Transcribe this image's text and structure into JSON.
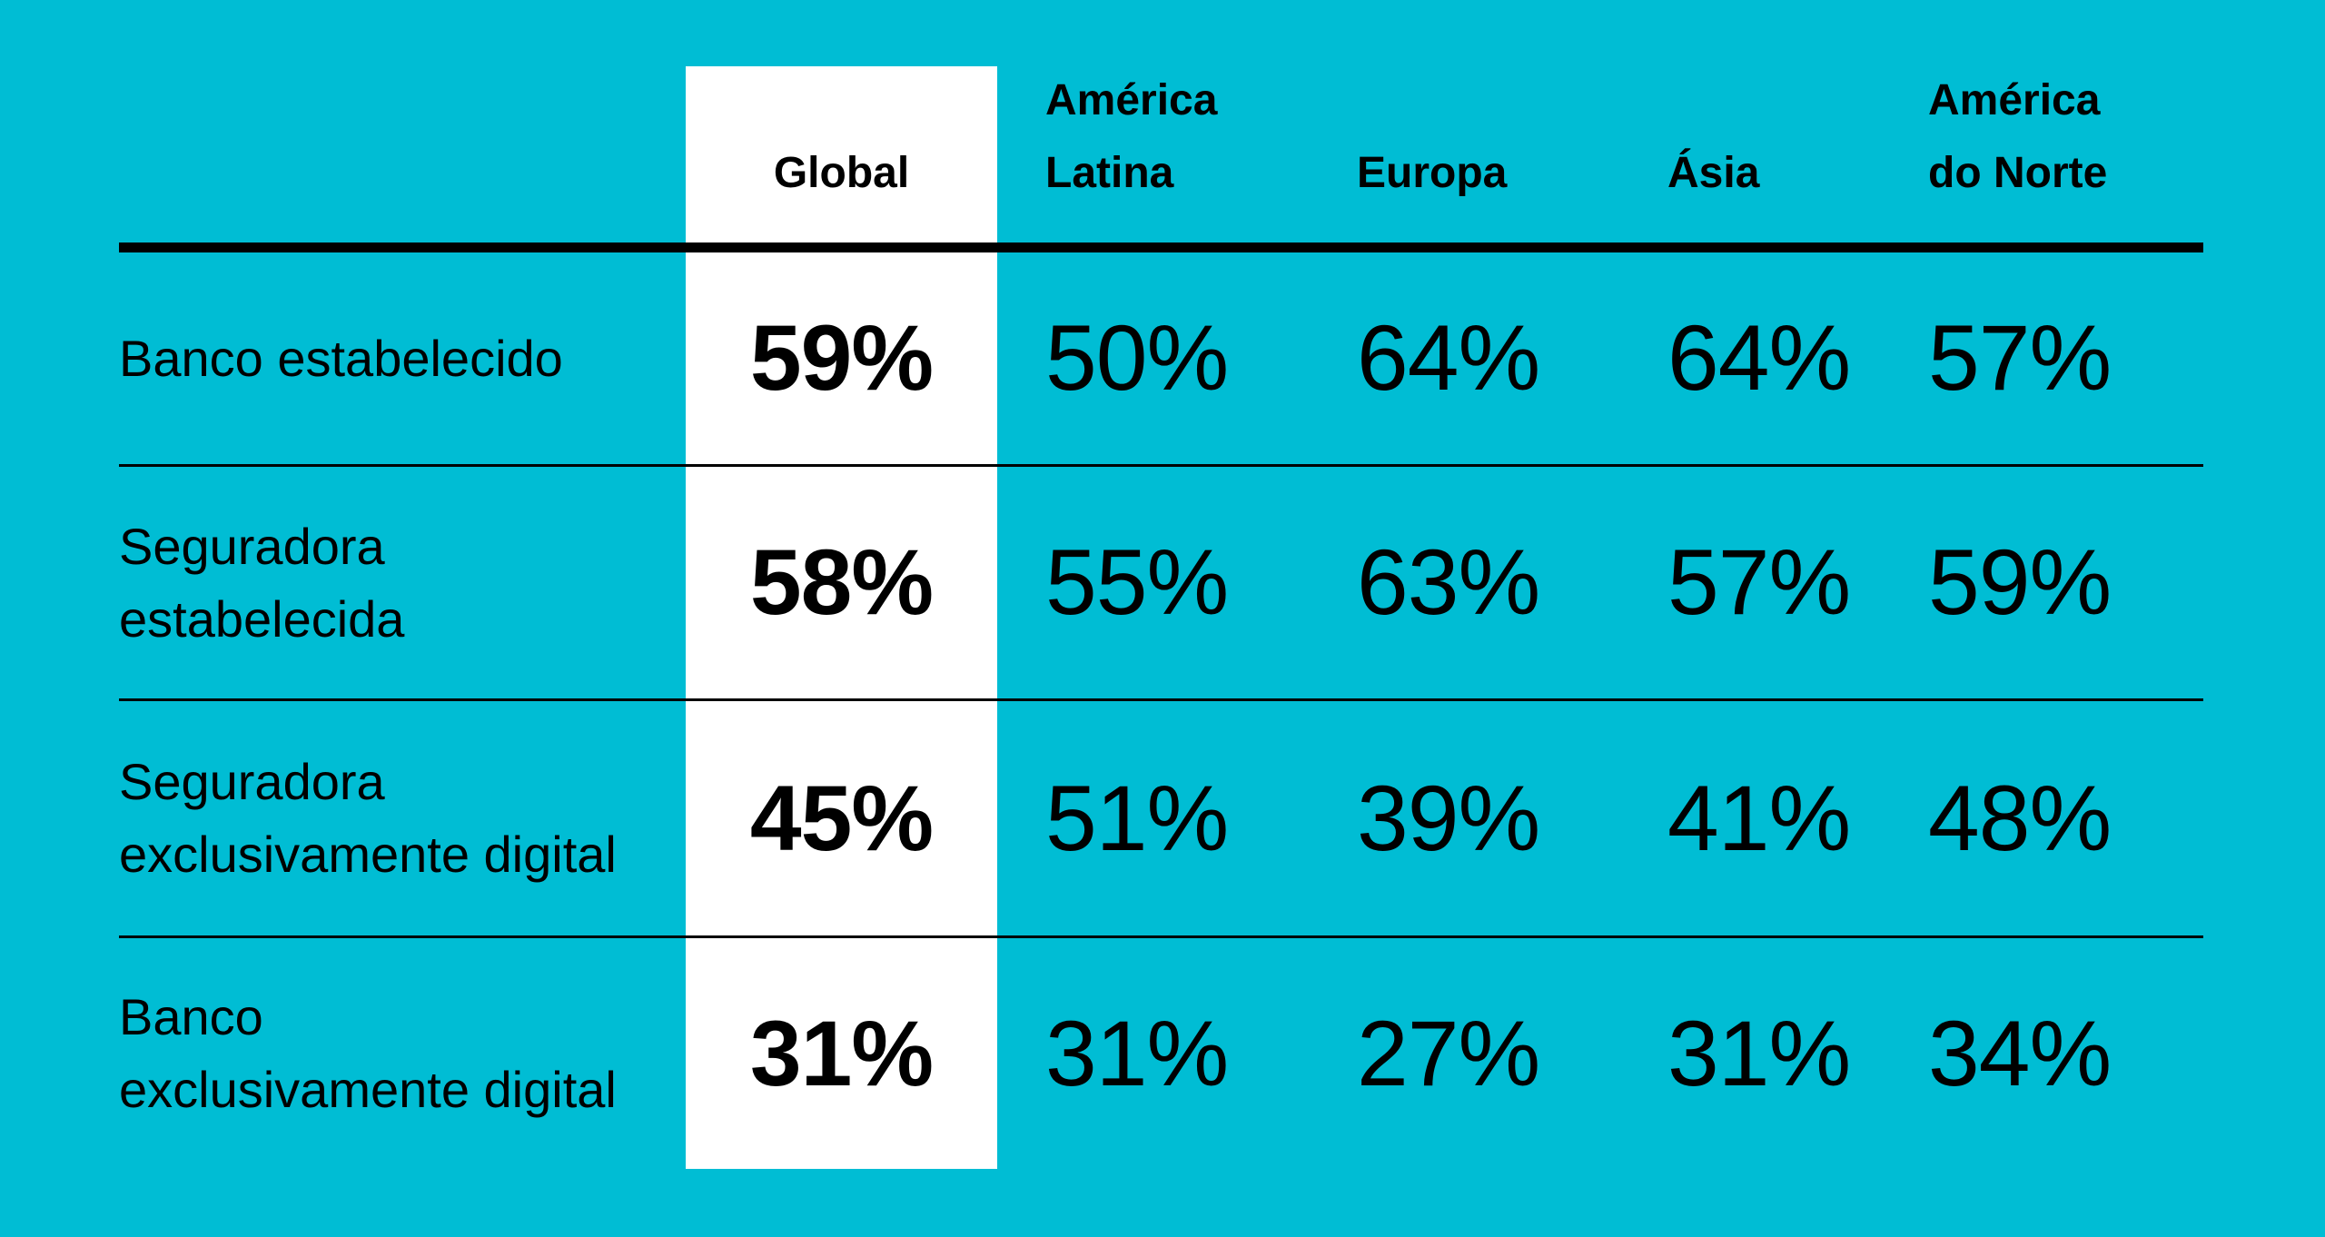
{
  "colors": {
    "background": "#00BDD4",
    "highlight_column_bg": "#FFFFFF",
    "rule_line": "#000000",
    "text": "#000000"
  },
  "chart_data": {
    "type": "table",
    "columns": [
      "Global",
      "América Latina",
      "Europa",
      "Ásia",
      "América do Norte"
    ],
    "highlighted_column": "Global",
    "rows": [
      {
        "label": "Banco estabelecido",
        "values": [
          "59%",
          "50%",
          "64%",
          "64%",
          "57%"
        ]
      },
      {
        "label": "Seguradora estabelecida",
        "values": [
          "58%",
          "55%",
          "63%",
          "57%",
          "59%"
        ]
      },
      {
        "label": "Seguradora exclusivamente digital",
        "values": [
          "45%",
          "51%",
          "39%",
          "41%",
          "48%"
        ]
      },
      {
        "label": "Banco exclusivamente digital",
        "values": [
          "31%",
          "31%",
          "27%",
          "31%",
          "34%"
        ]
      }
    ]
  },
  "header": {
    "global": "Global",
    "america_latina": "América\nLatina",
    "europa": "Europa",
    "asia": "Ásia",
    "america_do_norte": "América\ndo Norte"
  },
  "rows": [
    {
      "label": "Banco estabelecido",
      "global": "59%",
      "america_latina": "50%",
      "europa": "64%",
      "asia": "64%",
      "america_do_norte": "57%"
    },
    {
      "label": "Seguradora\nestabelecida",
      "global": "58%",
      "america_latina": "55%",
      "europa": "63%",
      "asia": "57%",
      "america_do_norte": "59%"
    },
    {
      "label": "Seguradora\nexclusivamente digital",
      "global": "45%",
      "america_latina": "51%",
      "europa": "39%",
      "asia": "41%",
      "america_do_norte": "48%"
    },
    {
      "label": "Banco\nexclusivamente digital",
      "global": "31%",
      "america_latina": "31%",
      "europa": "27%",
      "asia": "31%",
      "america_do_norte": "34%"
    }
  ]
}
